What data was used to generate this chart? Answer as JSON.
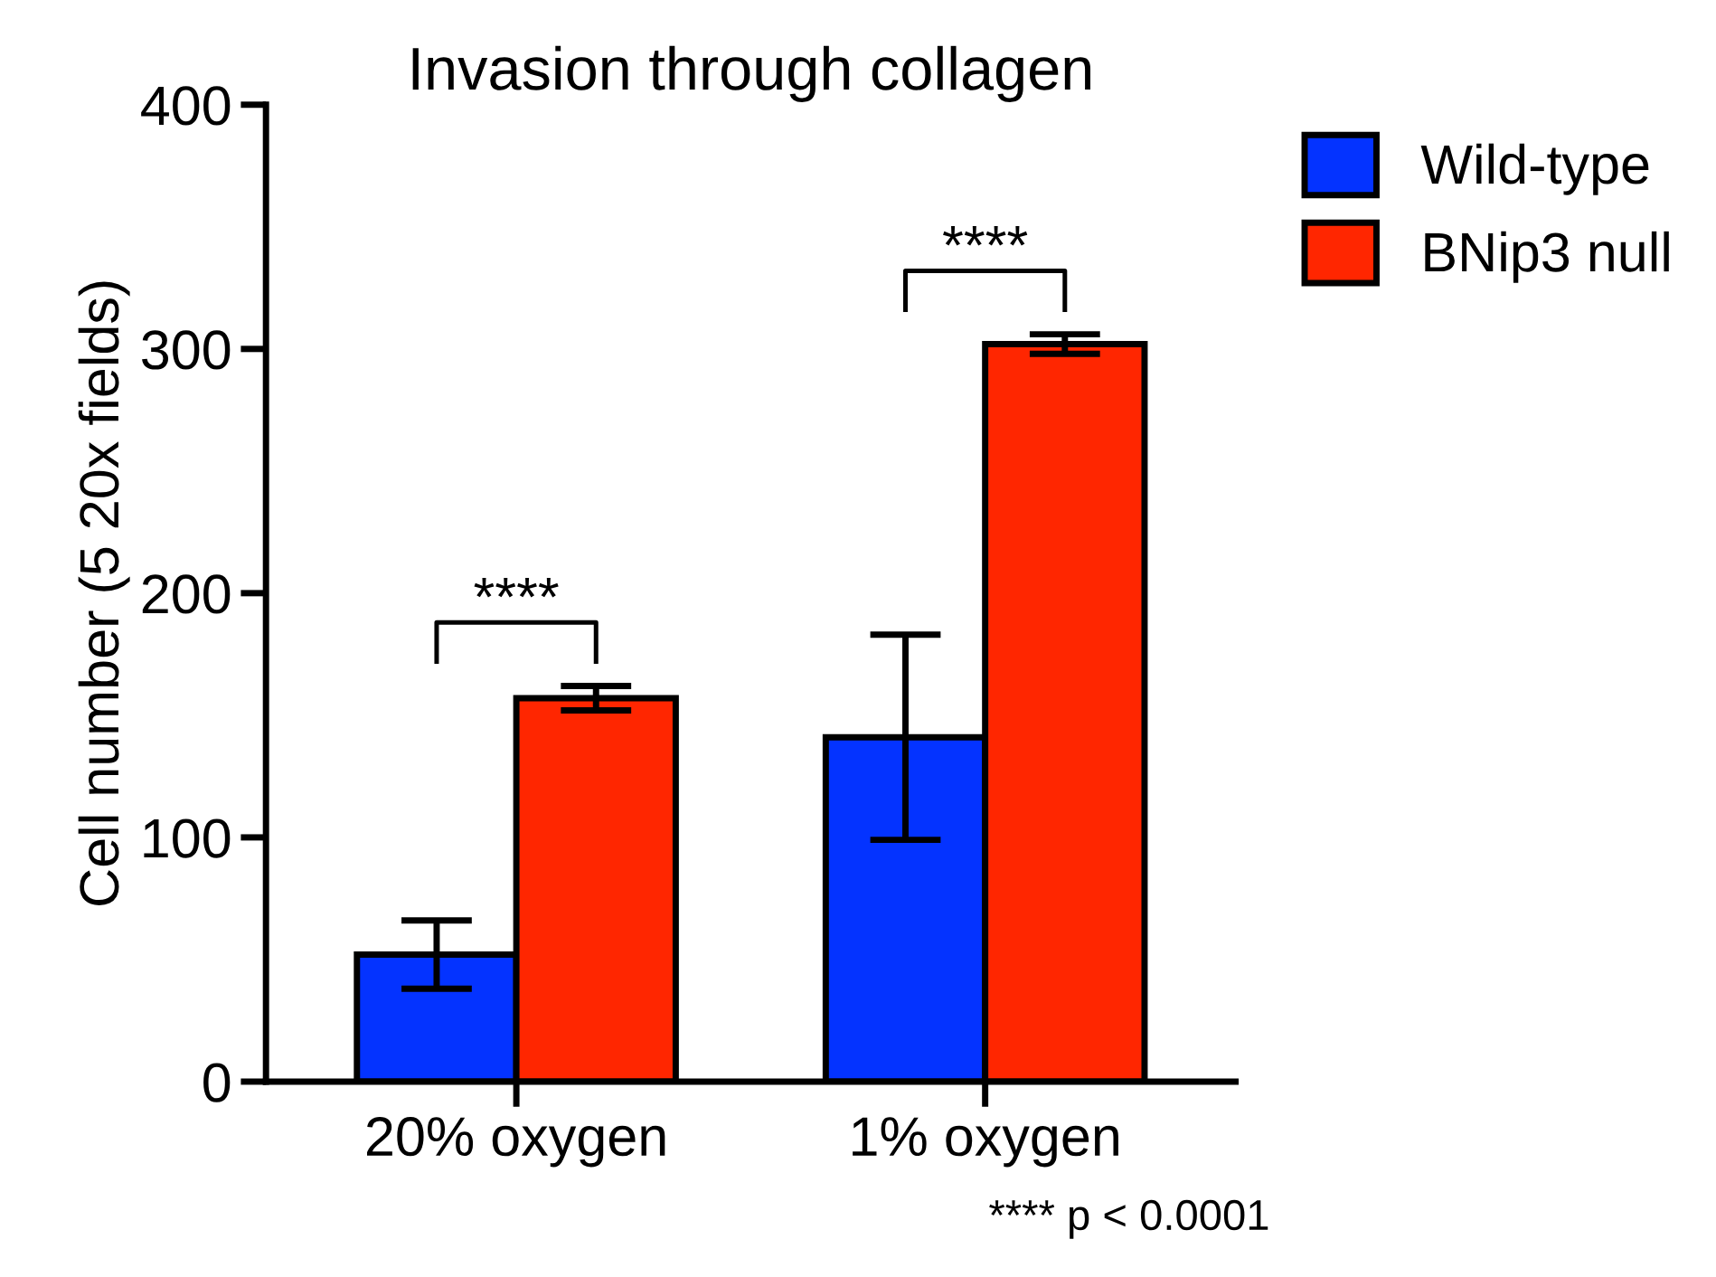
{
  "chart_data": {
    "type": "bar",
    "title": "Invasion through collagen",
    "ylabel": "Cell number (5 20x fields)",
    "categories": [
      "20% oxygen",
      "1% oxygen"
    ],
    "series": [
      {
        "name": "Wild-type",
        "color": "#0433ff",
        "values": [
          52,
          141
        ],
        "errors": [
          14,
          42
        ]
      },
      {
        "name": "BNip3 null",
        "color": "#ff2600",
        "values": [
          157,
          302
        ],
        "errors": [
          5,
          4
        ]
      }
    ],
    "ylim": [
      0,
      400
    ],
    "yticks": [
      0,
      100,
      200,
      300,
      400
    ],
    "grid": false,
    "legend": "top right",
    "annotations": [
      "****",
      "****",
      "**** p < 0.0001"
    ]
  }
}
